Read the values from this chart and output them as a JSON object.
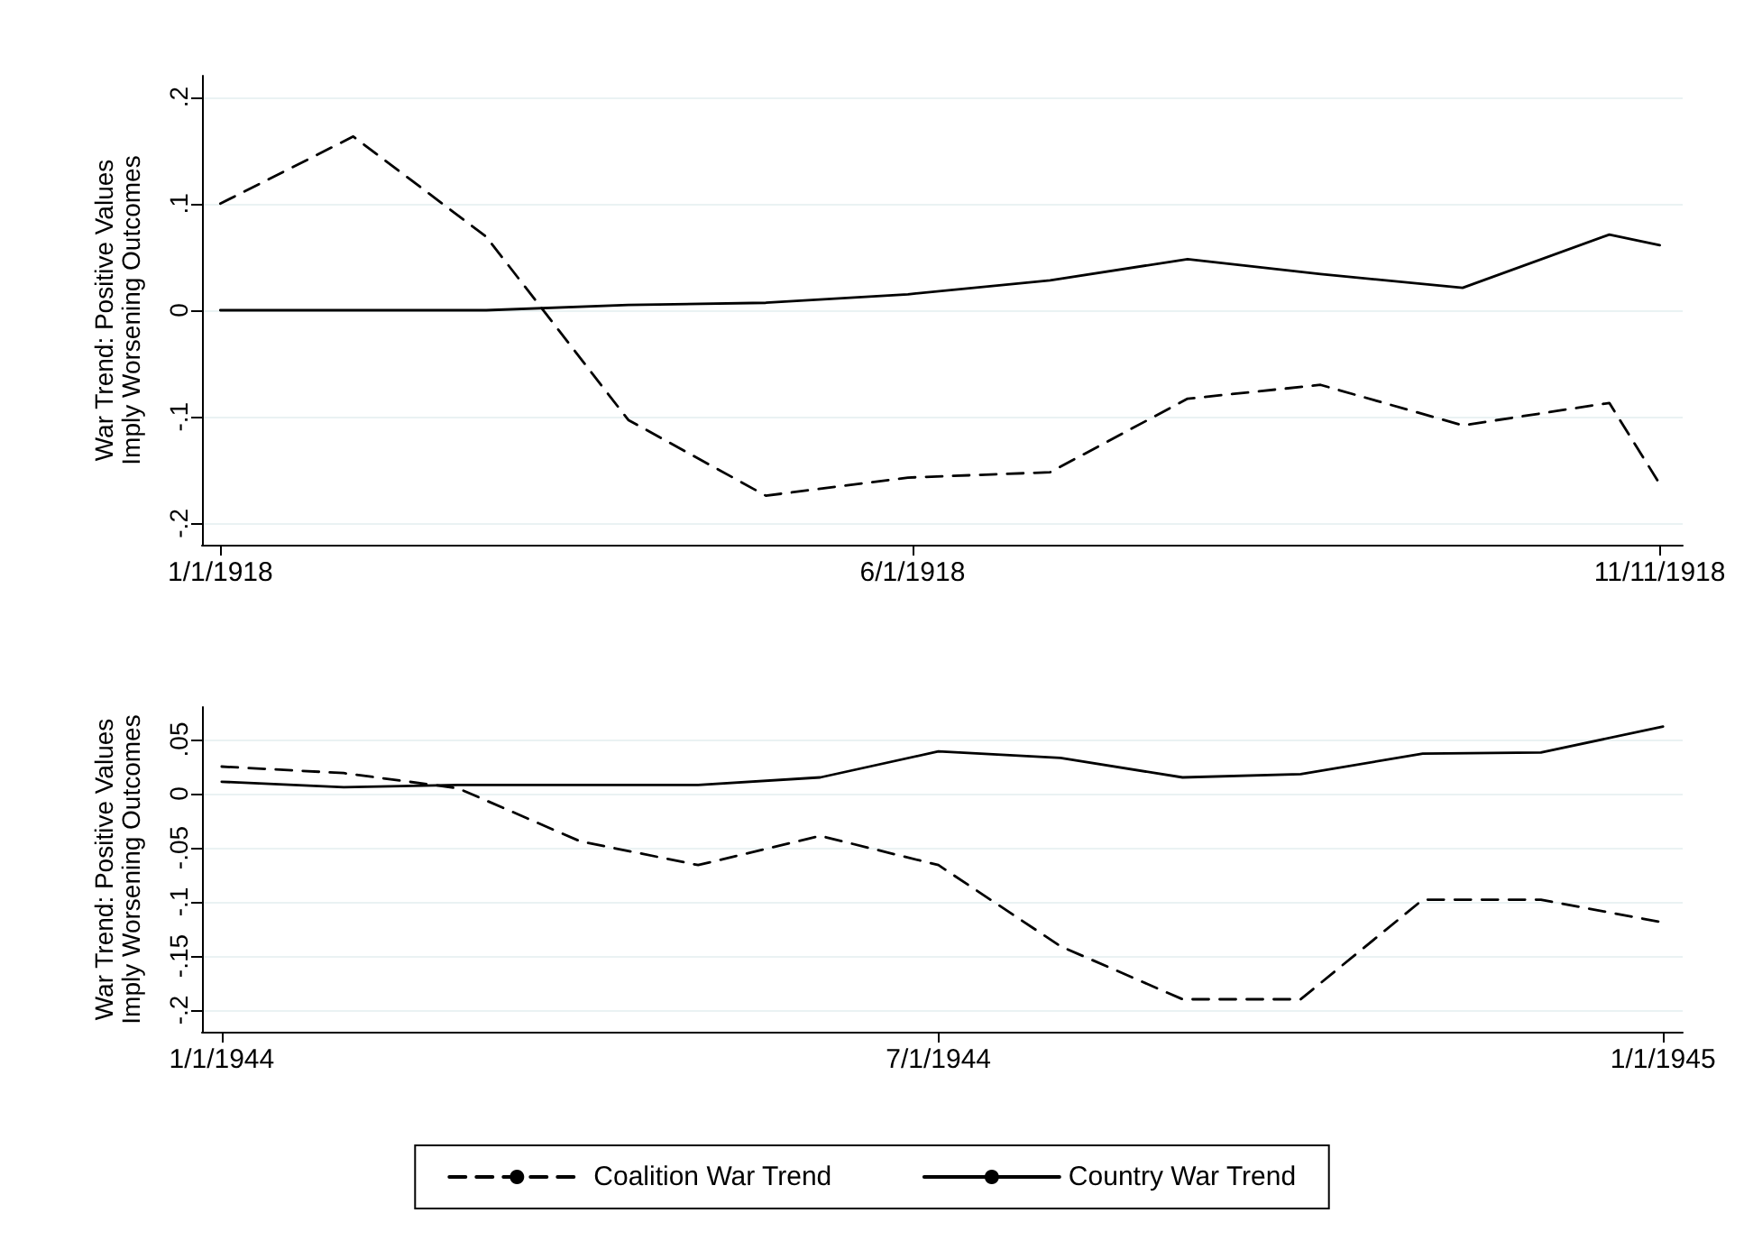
{
  "chart_data": [
    {
      "type": "line",
      "ylabel": "War Trend: Positive Values Imply Worsening Outcomes",
      "xlim": [
        "1917-12-28",
        "1918-11-16"
      ],
      "xticks": [
        {
          "value": "1918-01-01",
          "label": "1/1/1918"
        },
        {
          "value": "1918-06-01",
          "label": "6/1/1918"
        },
        {
          "value": "1918-11-11",
          "label": "11/11/1918"
        }
      ],
      "ylim": [
        -0.22,
        0.22
      ],
      "yticks": [
        {
          "value": -0.2,
          "label": "-.2"
        },
        {
          "value": -0.1,
          "label": "-.1"
        },
        {
          "value": 0,
          "label": "0"
        },
        {
          "value": 0.1,
          "label": ".1"
        },
        {
          "value": 0.2,
          "label": ".2"
        }
      ],
      "grid": "y",
      "marker": "none",
      "legend": false,
      "series": [
        {
          "color": "#000000",
          "line_style": "dashed",
          "x": [
            "1918-01-01",
            "1918-01-30",
            "1918-02-28",
            "1918-03-31",
            "1918-04-30",
            "1918-05-31",
            "1918-07-01",
            "1918-07-31",
            "1918-08-29",
            "1918-09-29",
            "1918-10-31",
            "1918-11-11"
          ],
          "values": [
            0.1,
            0.163,
            0.069,
            -0.103,
            -0.174,
            -0.157,
            -0.152,
            -0.083,
            -0.07,
            -0.108,
            -0.087,
            -0.163
          ]
        },
        {
          "color": "#000000",
          "line_style": "solid",
          "x": [
            "1918-01-01",
            "1918-01-30",
            "1918-02-28",
            "1918-03-31",
            "1918-04-30",
            "1918-05-31",
            "1918-07-01",
            "1918-07-31",
            "1918-08-29",
            "1918-09-29",
            "1918-10-31",
            "1918-11-11"
          ],
          "values": [
            0,
            0,
            0,
            0.005,
            0.007,
            0.015,
            0.028,
            0.048,
            0.034,
            0.021,
            0.071,
            0.061
          ]
        }
      ]
    },
    {
      "type": "line",
      "ylabel": "War Trend: Positive Values Imply Worsening Outcomes",
      "xlim": [
        "1943-12-27",
        "1945-01-06"
      ],
      "xticks": [
        {
          "value": "1944-01-01",
          "label": "1/1/1944"
        },
        {
          "value": "1944-07-01",
          "label": "7/1/1944"
        },
        {
          "value": "1945-01-01",
          "label": "1/1/1945"
        }
      ],
      "ylim": [
        -0.22,
        0.08
      ],
      "yticks": [
        {
          "value": -0.2,
          "label": "-.2"
        },
        {
          "value": -0.15,
          "label": "-.15"
        },
        {
          "value": -0.1,
          "label": "-.1"
        },
        {
          "value": -0.05,
          "label": "-.05"
        },
        {
          "value": 0,
          "label": "0"
        },
        {
          "value": 0.05,
          "label": ".05"
        }
      ],
      "grid": "y",
      "marker": "none",
      "legend": "bottom",
      "series": [
        {
          "name": "Coalition War Trend",
          "color": "#000000",
          "line_style": "dashed",
          "x": [
            "1944-01-01",
            "1944-02-01",
            "1944-03-01",
            "1944-04-01",
            "1944-05-01",
            "1944-06-01",
            "1944-07-01",
            "1944-08-01",
            "1944-09-01",
            "1944-10-01",
            "1944-11-01",
            "1944-12-01",
            "1945-01-01"
          ],
          "values": [
            0.025,
            0.019,
            0.005,
            -0.044,
            -0.066,
            -0.039,
            -0.066,
            -0.141,
            -0.19,
            -0.19,
            -0.098,
            -0.098,
            -0.119
          ]
        },
        {
          "name": "Country War Trend",
          "color": "#000000",
          "line_style": "solid",
          "x": [
            "1944-01-01",
            "1944-02-01",
            "1944-03-01",
            "1944-04-01",
            "1944-05-01",
            "1944-06-01",
            "1944-07-01",
            "1944-08-01",
            "1944-09-01",
            "1944-10-01",
            "1944-11-01",
            "1944-12-01",
            "1945-01-01"
          ],
          "values": [
            0.011,
            0.006,
            0.008,
            0.008,
            0.008,
            0.015,
            0.039,
            0.033,
            0.015,
            0.018,
            0.037,
            0.038,
            0.062
          ]
        }
      ]
    }
  ]
}
